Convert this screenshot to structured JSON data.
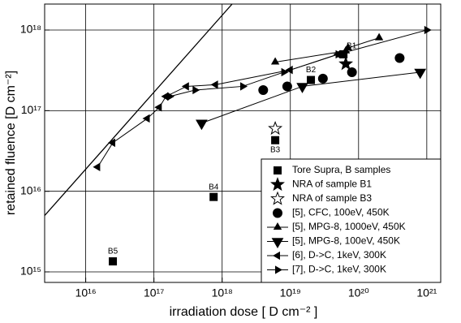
{
  "chart_data": {
    "type": "scatter",
    "xlabel": "irradiation dose  [ D cm⁻² ]",
    "ylabel": "retained fluence [D cm⁻²]",
    "xscale": "log",
    "yscale": "log",
    "grid": true,
    "legend": "lower right",
    "xlim": [
      2500000000000000.0,
      1.6e+21
    ],
    "ylim": [
      740000000000000.0,
      2.1e+18
    ],
    "xticks": [
      {
        "value": 1e+16,
        "label": "10¹⁶"
      },
      {
        "value": 1e+17,
        "label": "10¹⁷"
      },
      {
        "value": 1e+18,
        "label": "10¹⁸"
      },
      {
        "value": 1e+19,
        "label": "10¹⁹"
      },
      {
        "value": 1e+20,
        "label": "10²⁰"
      },
      {
        "value": 1e+21,
        "label": "10²¹"
      }
    ],
    "yticks": [
      {
        "value": 1000000000000000.0,
        "label": "10¹⁵"
      },
      {
        "value": 1e+16,
        "label": "10¹⁶"
      },
      {
        "value": 1e+17,
        "label": "10¹⁷"
      },
      {
        "value": 1e+18,
        "label": "10¹⁸"
      }
    ],
    "reference_line": {
      "color": "#000000",
      "x": [
        2500000000000000.0,
        1.4e+18
      ],
      "values": [
        5000000000000000.0,
        2.1e+18
      ]
    },
    "series": [
      {
        "name": "Tore Supra, B samples",
        "color": "#000000",
        "marker": "square",
        "connected": false,
        "x": [
          2.5e+16,
          7.5e+17,
          6e+18,
          2e+19,
          6e+19
        ],
        "values": [
          1350000000000000.0,
          8500000000000000.0,
          4.3e+16,
          2.4e+17,
          5e+17
        ],
        "point_labels": [
          "B5",
          "B4",
          "B3",
          "B2",
          "B1"
        ]
      },
      {
        "name": "NRA of sample B1",
        "color": "#000000",
        "marker": "star",
        "connected": false,
        "x": [
          6.5e+19
        ],
        "values": [
          3.8e+17
        ]
      },
      {
        "name": "NRA of sample B3",
        "color": "#000000",
        "marker": "star-open",
        "connected": false,
        "x": [
          6e+18
        ],
        "values": [
          6e+16
        ]
      },
      {
        "name": "[5], CFC, 100eV, 450K",
        "color": "#000000",
        "marker": "circle",
        "connected": false,
        "x": [
          4e+18,
          9e+18,
          3e+19,
          8e+19,
          4e+20
        ],
        "values": [
          1.8e+17,
          2e+17,
          2.5e+17,
          3e+17,
          4.5e+17
        ]
      },
      {
        "name": "[5], MPG-8, 1000eV, 450K",
        "color": "#000000",
        "marker": "tri-up",
        "connected": true,
        "x": [
          6e+18,
          6.5e+19,
          7e+19,
          2e+20
        ],
        "values": [
          4e+17,
          5.5e+17,
          6e+17,
          8e+17
        ]
      },
      {
        "name": "[5], MPG-8, 100eV, 450K",
        "color": "#000000",
        "marker": "tri-down",
        "connected": true,
        "x": [
          5e+17,
          1.5e+19,
          8e+20
        ],
        "values": [
          7e+16,
          2e+17,
          3e+17
        ]
      },
      {
        "name": "[6], D->C, 1keV, 300K",
        "color": "#000000",
        "marker": "tri-left",
        "connected": true,
        "x": [
          1.5e+16,
          2.5e+16,
          8e+16,
          1.2e+17,
          1.5e+17,
          3e+17,
          8e+17,
          1e+19,
          5e+19
        ],
        "values": [
          2e+16,
          4e+16,
          8e+16,
          1.1e+17,
          1.5e+17,
          2e+17,
          2.1e+17,
          3.2e+17,
          5e+17
        ]
      },
      {
        "name": "[7], D->C, 1keV, 300K",
        "color": "#000000",
        "marker": "tri-right",
        "connected": true,
        "x": [
          1.7e+17,
          4e+17,
          2e+18,
          8e+18,
          5e+19,
          1e+21
        ],
        "values": [
          1.5e+17,
          1.8e+17,
          2e+17,
          3e+17,
          5e+17,
          1e+18
        ]
      }
    ]
  }
}
